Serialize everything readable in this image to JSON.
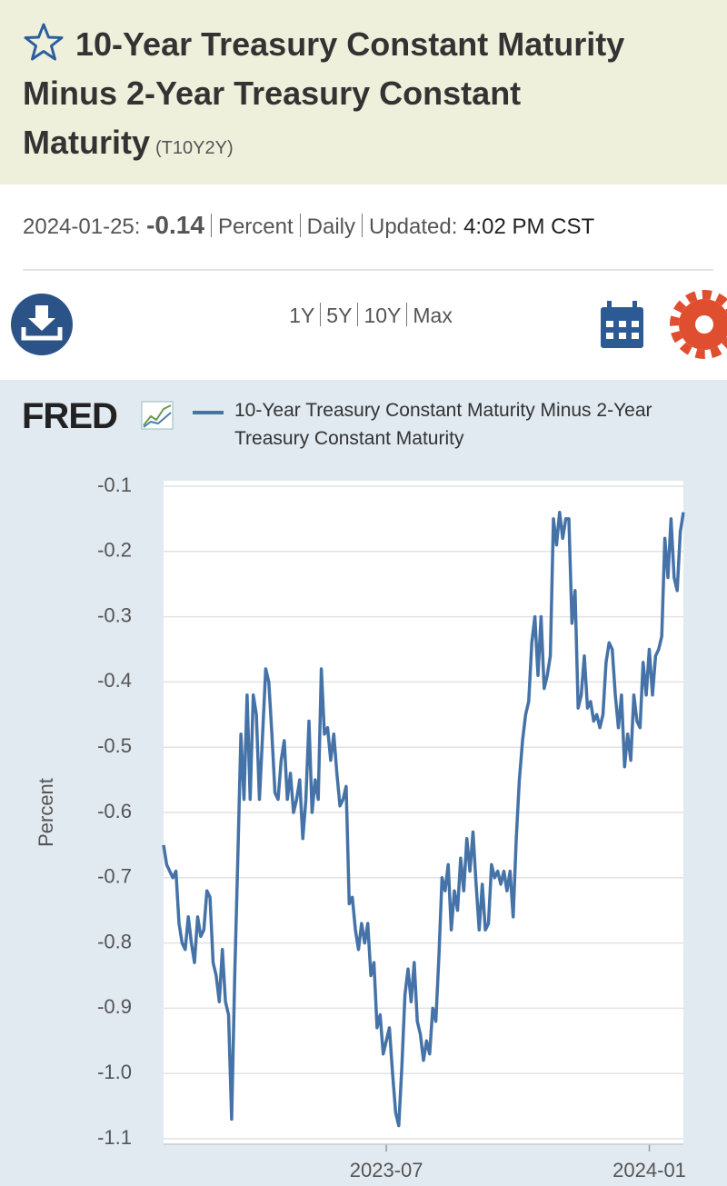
{
  "header": {
    "title": "10-Year Treasury Constant Maturity Minus 2-Year Treasury Constant Maturity",
    "symbol": "(T10Y2Y)"
  },
  "info": {
    "date": "2024-01-25:",
    "value": "-0.14",
    "units": "Percent",
    "frequency": "Daily",
    "updated_label": "Updated:",
    "updated_time": "4:02 PM CST"
  },
  "toolbar": {
    "ranges": [
      "1Y",
      "5Y",
      "10Y",
      "Max"
    ]
  },
  "logo": "FRED",
  "chart_data": {
    "type": "line",
    "ylabel": "Percent",
    "series": [
      {
        "name": "10-Year Treasury Constant Maturity Minus 2-Year Treasury Constant Maturity",
        "color": "#4572a7",
        "values": [
          -0.65,
          -0.68,
          -0.69,
          -0.7,
          -0.69,
          -0.77,
          -0.8,
          -0.81,
          -0.76,
          -0.8,
          -0.83,
          -0.76,
          -0.79,
          -0.78,
          -0.72,
          -0.73,
          -0.83,
          -0.85,
          -0.89,
          -0.81,
          -0.89,
          -0.91,
          -1.07,
          -0.85,
          -0.67,
          -0.48,
          -0.58,
          -0.42,
          -0.58,
          -0.42,
          -0.45,
          -0.58,
          -0.48,
          -0.38,
          -0.4,
          -0.48,
          -0.57,
          -0.58,
          -0.52,
          -0.49,
          -0.58,
          -0.54,
          -0.6,
          -0.58,
          -0.55,
          -0.64,
          -0.58,
          -0.46,
          -0.6,
          -0.55,
          -0.58,
          -0.38,
          -0.48,
          -0.47,
          -0.52,
          -0.48,
          -0.54,
          -0.59,
          -0.58,
          -0.56,
          -0.74,
          -0.73,
          -0.78,
          -0.81,
          -0.77,
          -0.8,
          -0.77,
          -0.85,
          -0.83,
          -0.93,
          -0.91,
          -0.97,
          -0.95,
          -0.93,
          -1.0,
          -1.06,
          -1.08,
          -0.99,
          -0.88,
          -0.84,
          -0.89,
          -0.83,
          -0.92,
          -0.94,
          -0.98,
          -0.95,
          -0.97,
          -0.9,
          -0.92,
          -0.82,
          -0.7,
          -0.72,
          -0.68,
          -0.78,
          -0.72,
          -0.75,
          -0.67,
          -0.72,
          -0.64,
          -0.69,
          -0.63,
          -0.71,
          -0.78,
          -0.71,
          -0.78,
          -0.77,
          -0.68,
          -0.7,
          -0.69,
          -0.71,
          -0.69,
          -0.72,
          -0.69,
          -0.76,
          -0.64,
          -0.55,
          -0.49,
          -0.45,
          -0.43,
          -0.34,
          -0.3,
          -0.39,
          -0.3,
          -0.41,
          -0.39,
          -0.36,
          -0.15,
          -0.19,
          -0.14,
          -0.18,
          -0.15,
          -0.15,
          -0.31,
          -0.26,
          -0.44,
          -0.42,
          -0.36,
          -0.44,
          -0.43,
          -0.46,
          -0.45,
          -0.47,
          -0.45,
          -0.37,
          -0.34,
          -0.35,
          -0.42,
          -0.47,
          -0.42,
          -0.53,
          -0.48,
          -0.52,
          -0.42,
          -0.46,
          -0.47,
          -0.37,
          -0.42,
          -0.35,
          -0.42,
          -0.36,
          -0.35,
          -0.33,
          -0.18,
          -0.24,
          -0.15,
          -0.24,
          -0.26,
          -0.17,
          -0.14
        ]
      }
    ],
    "xlim": [
      0,
      168
    ],
    "xticks": [
      {
        "value": 72,
        "label": "2023-07"
      },
      {
        "value": 157,
        "label": "2024-01"
      }
    ],
    "ylim": [
      -1.1,
      -0.1
    ],
    "yticks": [
      -0.1,
      -0.2,
      -0.3,
      -0.4,
      -0.5,
      -0.6,
      -0.7,
      -0.8,
      -0.9,
      {
        "value": -1,
        "label": "-1.0"
      },
      -1.1
    ],
    "grid": true
  }
}
